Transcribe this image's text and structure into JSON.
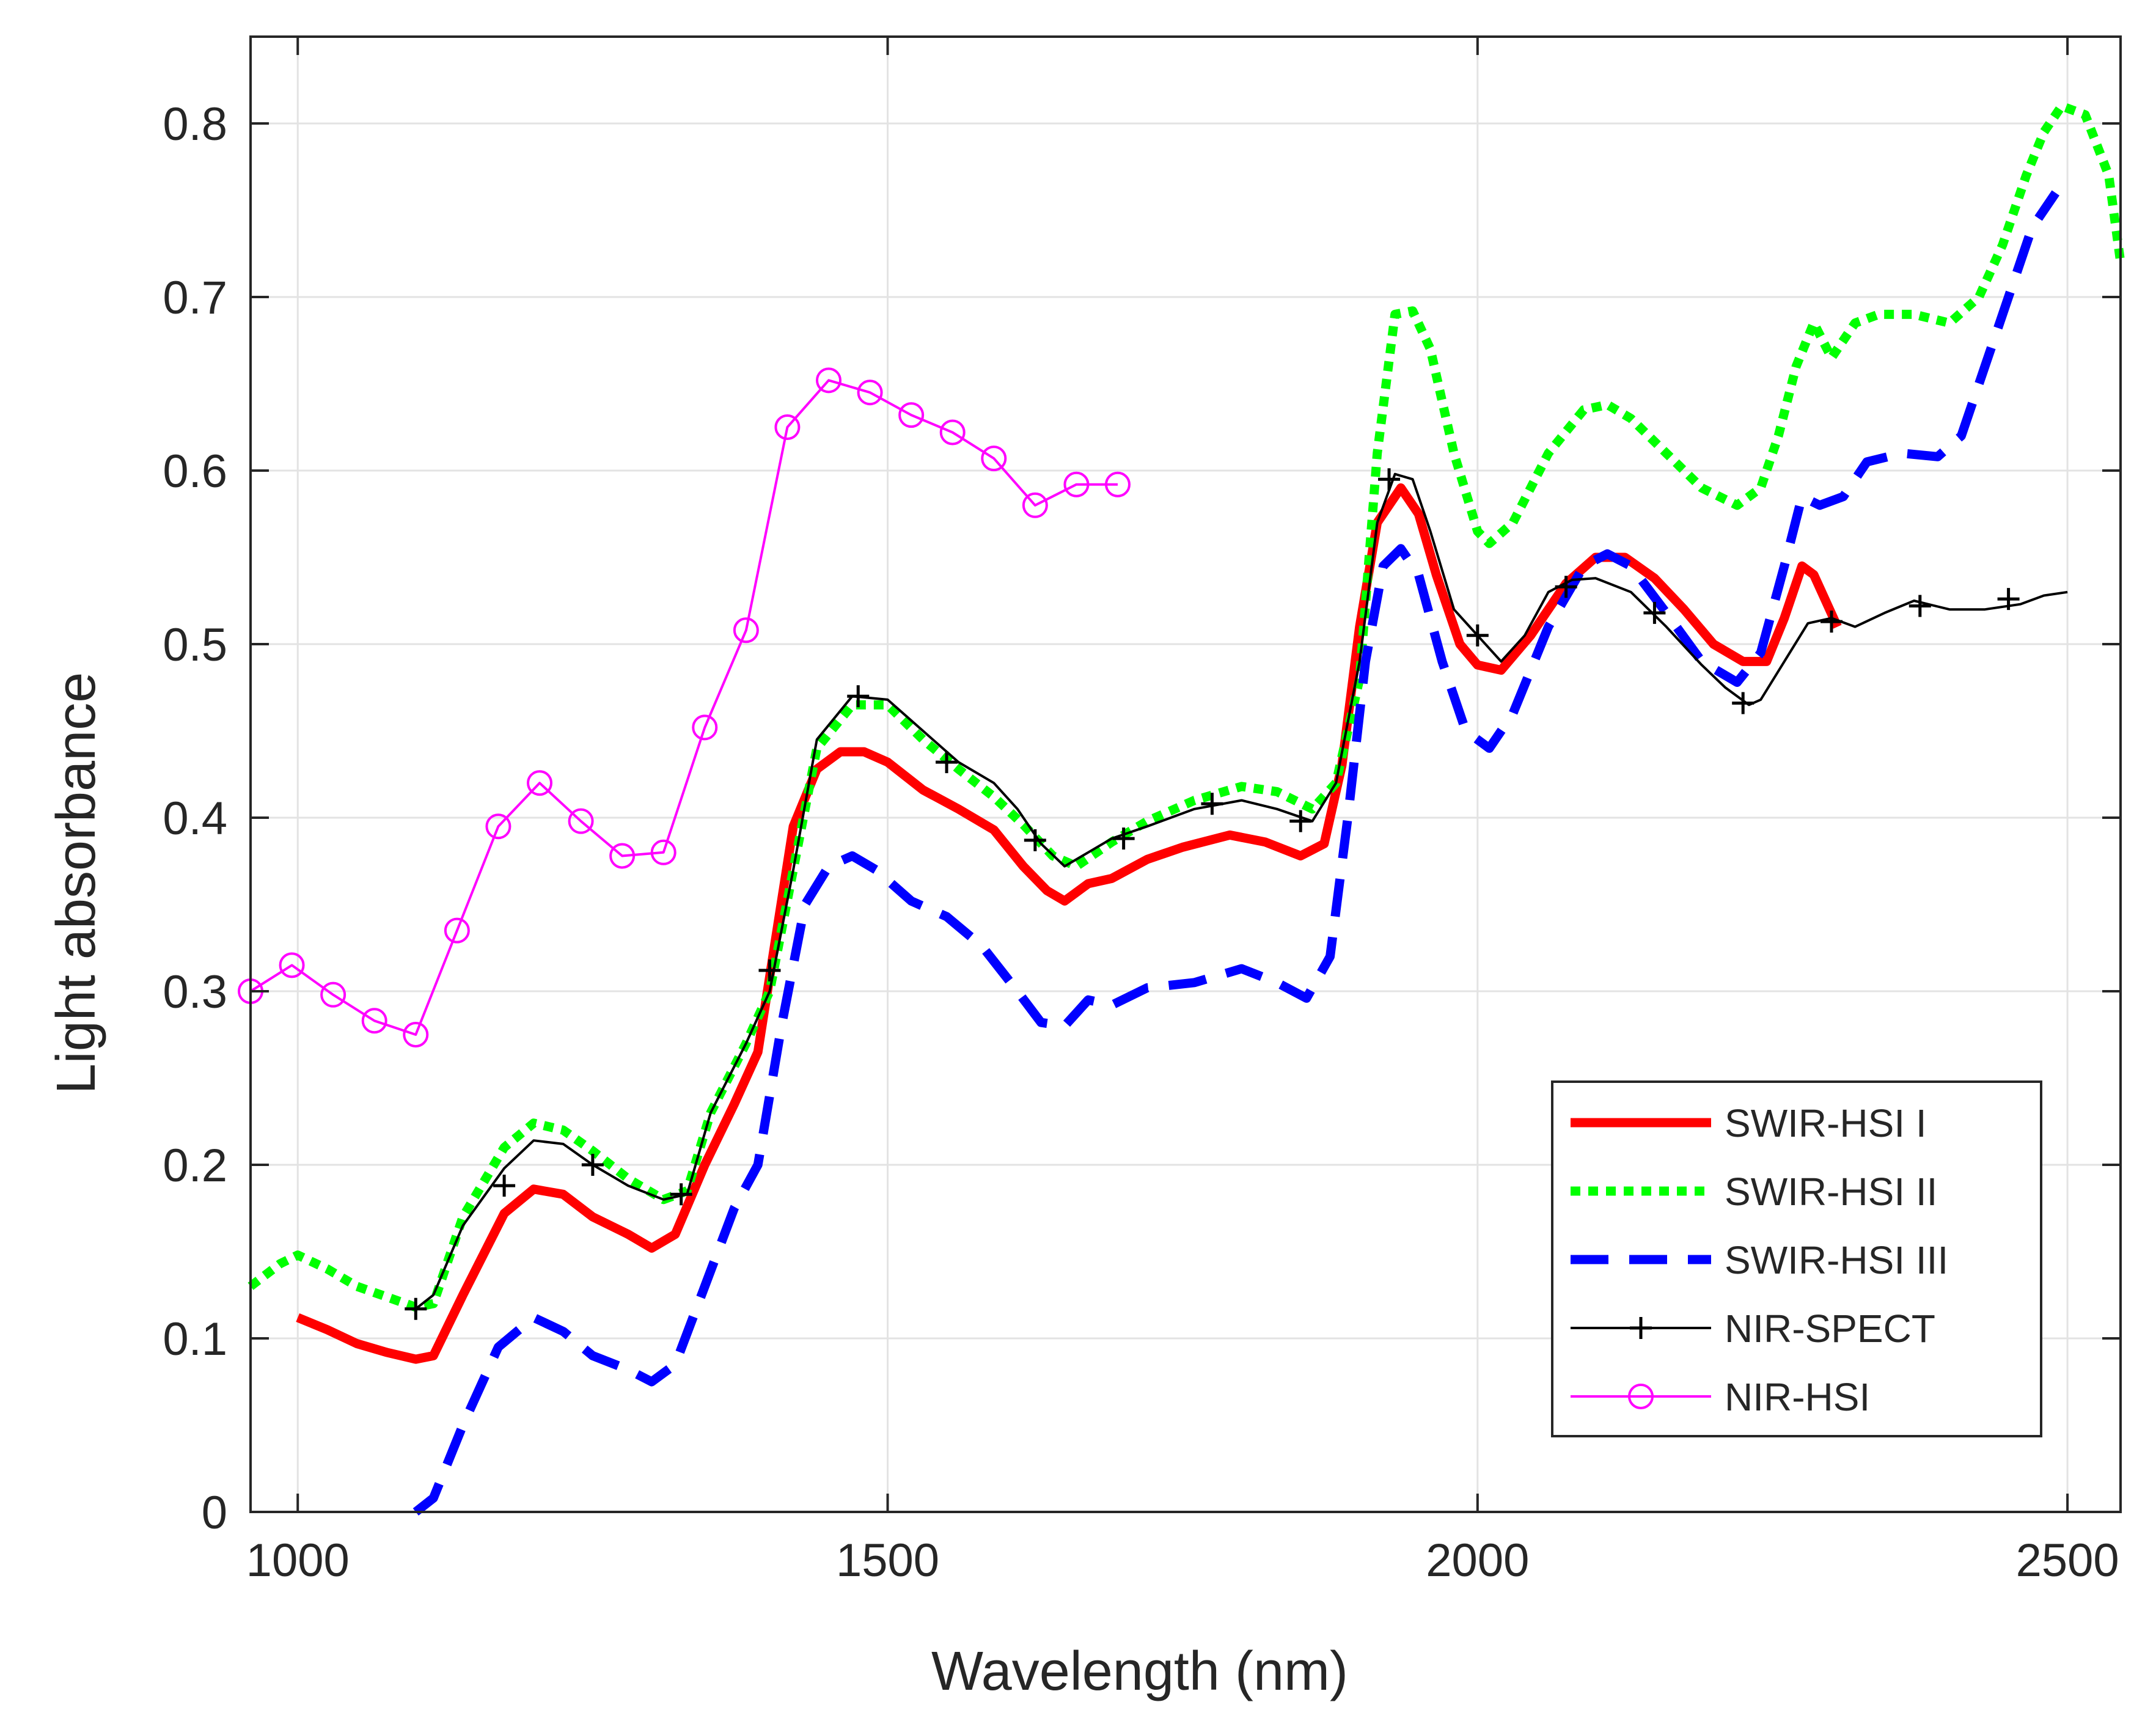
{
  "chart_data": {
    "type": "line",
    "title": "",
    "xlabel": "Wavelength (nm)",
    "ylabel": "Light absorbance",
    "xlim": [
      960,
      2545
    ],
    "ylim": [
      0,
      0.85
    ],
    "xticks": [
      1000,
      1500,
      2000,
      2500
    ],
    "xtick_labels": [
      "1000",
      "1500",
      "2000",
      "2500"
    ],
    "yticks": [
      0,
      0.1,
      0.2,
      0.3,
      0.4,
      0.5,
      0.6,
      0.7,
      0.8
    ],
    "ytick_labels": [
      "0",
      "0.1",
      "0.2",
      "0.3",
      "0.4",
      "0.5",
      "0.6",
      "0.7",
      "0.8"
    ],
    "grid": true,
    "legend_position": "bottom-right",
    "series": [
      {
        "name": "SWIR-HSI I",
        "color": "#ff0000",
        "style": "solid-thick",
        "marker": "none",
        "x": [
          1000,
          1025,
          1050,
          1075,
          1100,
          1115,
          1140,
          1175,
          1200,
          1225,
          1250,
          1280,
          1300,
          1320,
          1345,
          1370,
          1390,
          1405,
          1420,
          1440,
          1460,
          1480,
          1500,
          1530,
          1560,
          1590,
          1615,
          1635,
          1650,
          1670,
          1690,
          1720,
          1750,
          1790,
          1820,
          1850,
          1870,
          1885,
          1900,
          1915,
          1935,
          1950,
          1965,
          1985,
          2000,
          2020,
          2045,
          2075,
          2100,
          2125,
          2150,
          2175,
          2200,
          2225,
          2245,
          2260,
          2275,
          2285,
          2295,
          2305
        ],
        "y": [
          0.112,
          0.105,
          0.097,
          0.092,
          0.088,
          0.09,
          0.125,
          0.172,
          0.186,
          0.183,
          0.17,
          0.16,
          0.152,
          0.16,
          0.2,
          0.235,
          0.265,
          0.33,
          0.395,
          0.428,
          0.438,
          0.438,
          0.432,
          0.416,
          0.405,
          0.393,
          0.372,
          0.358,
          0.352,
          0.362,
          0.365,
          0.376,
          0.383,
          0.39,
          0.386,
          0.378,
          0.385,
          0.43,
          0.51,
          0.57,
          0.59,
          0.575,
          0.54,
          0.5,
          0.488,
          0.485,
          0.505,
          0.535,
          0.55,
          0.55,
          0.538,
          0.52,
          0.5,
          0.49,
          0.49,
          0.515,
          0.545,
          0.54,
          0.525,
          0.51
        ]
      },
      {
        "name": "SWIR-HSI II",
        "color": "#00ff00",
        "style": "dotted-thick",
        "marker": "none",
        "x": [
          960,
          985,
          1000,
          1025,
          1050,
          1075,
          1100,
          1115,
          1140,
          1175,
          1200,
          1225,
          1250,
          1280,
          1310,
          1330,
          1350,
          1380,
          1400,
          1420,
          1440,
          1470,
          1500,
          1530,
          1560,
          1590,
          1615,
          1640,
          1660,
          1690,
          1720,
          1760,
          1800,
          1830,
          1860,
          1880,
          1900,
          1915,
          1930,
          1945,
          1960,
          1980,
          2000,
          2010,
          2030,
          2060,
          2090,
          2110,
          2130,
          2160,
          2190,
          2220,
          2240,
          2255,
          2270,
          2285,
          2300,
          2320,
          2340,
          2370,
          2400,
          2425,
          2445,
          2465,
          2480,
          2495,
          2515,
          2535,
          2545
        ],
        "y": [
          0.13,
          0.143,
          0.148,
          0.14,
          0.13,
          0.124,
          0.118,
          0.12,
          0.17,
          0.21,
          0.224,
          0.22,
          0.208,
          0.192,
          0.18,
          0.185,
          0.23,
          0.27,
          0.3,
          0.37,
          0.44,
          0.465,
          0.465,
          0.445,
          0.428,
          0.412,
          0.396,
          0.378,
          0.372,
          0.386,
          0.398,
          0.41,
          0.418,
          0.415,
          0.405,
          0.42,
          0.48,
          0.61,
          0.69,
          0.692,
          0.67,
          0.61,
          0.565,
          0.558,
          0.57,
          0.61,
          0.635,
          0.638,
          0.63,
          0.61,
          0.59,
          0.58,
          0.59,
          0.62,
          0.66,
          0.685,
          0.665,
          0.685,
          0.69,
          0.69,
          0.685,
          0.7,
          0.73,
          0.77,
          0.795,
          0.81,
          0.805,
          0.77,
          0.72
        ]
      },
      {
        "name": "SWIR-HSI III",
        "color": "#0000ff",
        "style": "dashed-thick",
        "marker": "none",
        "x": [
          1100,
          1115,
          1140,
          1170,
          1200,
          1225,
          1250,
          1280,
          1300,
          1320,
          1345,
          1370,
          1390,
          1410,
          1430,
          1450,
          1470,
          1490,
          1520,
          1550,
          1580,
          1610,
          1630,
          1650,
          1670,
          1690,
          1720,
          1760,
          1800,
          1830,
          1855,
          1875,
          1890,
          1905,
          1920,
          1935,
          1950,
          1970,
          1990,
          2010,
          2030,
          2060,
          2090,
          2110,
          2130,
          2160,
          2190,
          2220,
          2240,
          2260,
          2275,
          2290,
          2310,
          2330,
          2360,
          2390,
          2410,
          2430,
          2450,
          2470,
          2490
        ],
        "y": [
          0.0,
          0.008,
          0.05,
          0.095,
          0.112,
          0.104,
          0.09,
          0.082,
          0.075,
          0.085,
          0.13,
          0.175,
          0.2,
          0.28,
          0.35,
          0.372,
          0.378,
          0.37,
          0.352,
          0.343,
          0.326,
          0.3,
          0.282,
          0.28,
          0.295,
          0.292,
          0.302,
          0.305,
          0.313,
          0.305,
          0.296,
          0.32,
          0.4,
          0.49,
          0.545,
          0.555,
          0.54,
          0.49,
          0.45,
          0.44,
          0.46,
          0.51,
          0.545,
          0.552,
          0.545,
          0.518,
          0.49,
          0.478,
          0.495,
          0.545,
          0.585,
          0.58,
          0.585,
          0.605,
          0.61,
          0.608,
          0.62,
          0.66,
          0.7,
          0.74,
          0.76
        ]
      },
      {
        "name": "NIR-SPECT",
        "color": "#000000",
        "style": "solid-thin",
        "marker": "plus",
        "x": [
          1100,
          1115,
          1140,
          1175,
          1200,
          1225,
          1250,
          1280,
          1310,
          1330,
          1350,
          1380,
          1400,
          1420,
          1440,
          1470,
          1500,
          1530,
          1560,
          1590,
          1610,
          1630,
          1650,
          1670,
          1690,
          1720,
          1760,
          1800,
          1830,
          1860,
          1880,
          1900,
          1915,
          1930,
          1945,
          1960,
          1980,
          2000,
          2020,
          2040,
          2060,
          2080,
          2100,
          2130,
          2160,
          2190,
          2210,
          2230,
          2240,
          2260,
          2280,
          2300,
          2320,
          2345,
          2370,
          2400,
          2430,
          2460,
          2480,
          2500
        ],
        "y": [
          0.117,
          0.125,
          0.165,
          0.198,
          0.214,
          0.212,
          0.2,
          0.188,
          0.18,
          0.183,
          0.23,
          0.27,
          0.3,
          0.37,
          0.445,
          0.47,
          0.468,
          0.45,
          0.432,
          0.42,
          0.405,
          0.385,
          0.372,
          0.38,
          0.388,
          0.395,
          0.405,
          0.41,
          0.405,
          0.398,
          0.42,
          0.49,
          0.57,
          0.598,
          0.595,
          0.565,
          0.52,
          0.505,
          0.49,
          0.505,
          0.53,
          0.537,
          0.538,
          0.53,
          0.51,
          0.488,
          0.475,
          0.465,
          0.468,
          0.49,
          0.512,
          0.515,
          0.51,
          0.518,
          0.525,
          0.52,
          0.52,
          0.523,
          0.528,
          0.53
        ],
        "markers_x": [
          1100,
          1175,
          1250,
          1325,
          1400,
          1475,
          1550,
          1625,
          1700,
          1775,
          1850,
          1925,
          2000,
          2075,
          2150,
          2225,
          2300,
          2375,
          2450
        ],
        "markers_y": [
          0.117,
          0.188,
          0.2,
          0.183,
          0.312,
          0.47,
          0.432,
          0.387,
          0.388,
          0.408,
          0.398,
          0.595,
          0.505,
          0.533,
          0.518,
          0.466,
          0.513,
          0.522,
          0.526
        ]
      },
      {
        "name": "NIR-HSI",
        "color": "#ff00ff",
        "style": "solid-thin",
        "marker": "circle",
        "x": [
          960,
          995,
          1030,
          1065,
          1100,
          1135,
          1170,
          1205,
          1240,
          1275,
          1310,
          1345,
          1380,
          1415,
          1450,
          1485,
          1520,
          1555,
          1590,
          1625,
          1660,
          1695
        ],
        "y": [
          0.3,
          0.315,
          0.298,
          0.283,
          0.275,
          0.335,
          0.395,
          0.42,
          0.398,
          0.378,
          0.38,
          0.452,
          0.508,
          0.625,
          0.652,
          0.645,
          0.632,
          0.622,
          0.607,
          0.58,
          0.592,
          0.592
        ]
      }
    ]
  }
}
